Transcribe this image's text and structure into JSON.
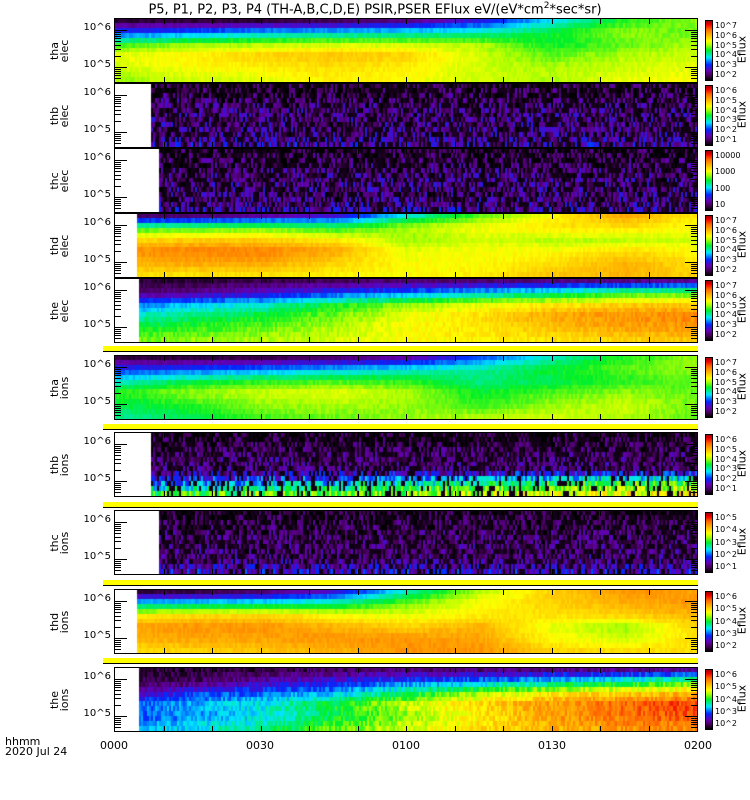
{
  "title": {
    "text": "P5, P1, P2, P3, P4 (TH-A,B,C,D,E) PSIR,PSER EFlux eV/(eV*cm",
    "sup": "2",
    "tail": "*sec*sr)"
  },
  "xaxis": {
    "format_label": "hhmm",
    "date_label": "2020 Jul 24"
  },
  "chart_data": {
    "type": "heatmap",
    "title": "P5, P1, P2, P3, P4 (TH-A,B,C,D,E) PSIR,PSER EFlux eV/(eV*cm^2*sec*sr)",
    "x_unit": "minutes since 2020-07-24 00:00",
    "xlim": [
      0,
      120
    ],
    "x_tick_labels": [
      "0000",
      "0030",
      "0100",
      "0130",
      "0200"
    ],
    "x_tick_values": [
      0,
      30,
      60,
      90,
      120
    ],
    "y_scale": "log",
    "ylim_log10": [
      4.6,
      6.3
    ],
    "y_tick_labels": [
      "10^6",
      "10^5"
    ],
    "y_tick_values_log10": [
      6,
      5
    ],
    "grid_time_min": [
      0,
      15,
      30,
      45,
      60,
      75,
      90,
      105,
      120
    ],
    "value_note": "grid values are normalized colour level 0-1 along each panel's colorbar, energy rows high to low",
    "panels": [
      {
        "probe": "tha",
        "species": "elec",
        "start_min": 0,
        "noise": 0.02,
        "colorbar_labels": [
          "10^7",
          "10^6",
          "10^5",
          "10^4",
          "10^3",
          "10^2"
        ],
        "colorbar_title": "Eflux",
        "grid": [
          [
            0.05,
            0.05,
            0.05,
            0.08,
            0.12,
            0.22,
            0.38,
            0.52,
            0.58
          ],
          [
            0.26,
            0.3,
            0.36,
            0.38,
            0.4,
            0.42,
            0.5,
            0.58,
            0.55
          ],
          [
            0.52,
            0.58,
            0.6,
            0.62,
            0.62,
            0.6,
            0.5,
            0.55,
            0.6
          ],
          [
            0.64,
            0.68,
            0.72,
            0.74,
            0.72,
            0.62,
            0.55,
            0.6,
            0.62
          ],
          [
            0.62,
            0.66,
            0.68,
            0.7,
            0.68,
            0.62,
            0.6,
            0.62,
            0.64
          ],
          [
            0.58,
            0.62,
            0.64,
            0.68,
            0.66,
            0.62,
            0.6,
            0.64,
            0.66
          ]
        ]
      },
      {
        "probe": "thb",
        "species": "elec",
        "start_min": 7.4,
        "noise": 0.12,
        "colorbar_labels": [
          "10^6",
          "10^5",
          "10^4",
          "10^3",
          "10^2",
          "10^1"
        ],
        "colorbar_title": "Eflux",
        "grid": [
          [
            0.03,
            0.03,
            0.03,
            0.03,
            0.03,
            0.03,
            0.03,
            0.03,
            0.03
          ],
          [
            0.06,
            0.06,
            0.06,
            0.06,
            0.06,
            0.06,
            0.06,
            0.06,
            0.06
          ],
          [
            0.1,
            0.1,
            0.1,
            0.1,
            0.1,
            0.1,
            0.1,
            0.1,
            0.1
          ],
          [
            0.11,
            0.11,
            0.11,
            0.11,
            0.11,
            0.11,
            0.11,
            0.11,
            0.11
          ],
          [
            0.1,
            0.1,
            0.1,
            0.1,
            0.1,
            0.1,
            0.1,
            0.1,
            0.1
          ],
          [
            0.16,
            0.16,
            0.16,
            0.16,
            0.16,
            0.16,
            0.16,
            0.16,
            0.16
          ]
        ]
      },
      {
        "probe": "thc",
        "species": "elec",
        "start_min": 9,
        "noise": 0.12,
        "colorbar_labels": [
          "10000",
          "1000",
          "100",
          "10"
        ],
        "colorbar_title": "",
        "grid": [
          [
            0.03,
            0.03,
            0.03,
            0.03,
            0.03,
            0.03,
            0.03,
            0.03,
            0.03
          ],
          [
            0.06,
            0.06,
            0.06,
            0.06,
            0.06,
            0.06,
            0.06,
            0.06,
            0.06
          ],
          [
            0.1,
            0.1,
            0.1,
            0.1,
            0.1,
            0.1,
            0.1,
            0.1,
            0.1
          ],
          [
            0.11,
            0.11,
            0.11,
            0.11,
            0.11,
            0.11,
            0.11,
            0.11,
            0.11
          ],
          [
            0.1,
            0.1,
            0.1,
            0.1,
            0.1,
            0.1,
            0.1,
            0.1,
            0.1
          ],
          [
            0.15,
            0.15,
            0.15,
            0.15,
            0.15,
            0.15,
            0.15,
            0.15,
            0.15
          ]
        ]
      },
      {
        "probe": "thd",
        "species": "elec",
        "start_min": 4.3,
        "noise": 0.02,
        "colorbar_labels": [
          "10^7",
          "10^6",
          "10^5",
          "10^4",
          "10^3",
          "10^2"
        ],
        "colorbar_title": "Eflux",
        "grid": [
          [
            0.08,
            0.1,
            0.14,
            0.2,
            0.4,
            0.55,
            0.66,
            0.78,
            0.68
          ],
          [
            0.5,
            0.52,
            0.55,
            0.5,
            0.6,
            0.66,
            0.7,
            0.7,
            0.66
          ],
          [
            0.7,
            0.72,
            0.72,
            0.68,
            0.58,
            0.62,
            0.6,
            0.6,
            0.62
          ],
          [
            0.8,
            0.82,
            0.82,
            0.78,
            0.64,
            0.66,
            0.66,
            0.7,
            0.66
          ],
          [
            0.76,
            0.78,
            0.78,
            0.72,
            0.66,
            0.66,
            0.7,
            0.76,
            0.7
          ],
          [
            0.7,
            0.7,
            0.7,
            0.68,
            0.66,
            0.68,
            0.74,
            0.76,
            0.72
          ]
        ]
      },
      {
        "probe": "the",
        "species": "elec",
        "start_min": 4.7,
        "noise": 0.03,
        "colorbar_labels": [
          "10^7",
          "10^6",
          "10^5",
          "10^4",
          "10^3",
          "10^2"
        ],
        "colorbar_title": "Eflux",
        "grid": [
          [
            0.05,
            0.05,
            0.06,
            0.08,
            0.1,
            0.1,
            0.12,
            0.12,
            0.14
          ],
          [
            0.1,
            0.12,
            0.18,
            0.25,
            0.3,
            0.36,
            0.42,
            0.5,
            0.52
          ],
          [
            0.28,
            0.36,
            0.4,
            0.5,
            0.58,
            0.64,
            0.68,
            0.72,
            0.74
          ],
          [
            0.4,
            0.45,
            0.5,
            0.56,
            0.64,
            0.7,
            0.78,
            0.8,
            0.82
          ],
          [
            0.48,
            0.52,
            0.55,
            0.6,
            0.66,
            0.7,
            0.74,
            0.78,
            0.8
          ],
          [
            0.55,
            0.58,
            0.6,
            0.62,
            0.66,
            0.68,
            0.7,
            0.72,
            0.74
          ]
        ]
      },
      {
        "probe": "tha",
        "species": "ions",
        "start_min": 0,
        "noise": 0.02,
        "colorbar_labels": [
          "10^7",
          "10^6",
          "10^5",
          "10^4",
          "10^3",
          "10^2"
        ],
        "colorbar_title": "Eflux",
        "grid": [
          [
            0.05,
            0.05,
            0.06,
            0.1,
            0.15,
            0.28,
            0.42,
            0.52,
            0.58
          ],
          [
            0.26,
            0.28,
            0.32,
            0.36,
            0.4,
            0.44,
            0.5,
            0.55,
            0.58
          ],
          [
            0.4,
            0.48,
            0.52,
            0.54,
            0.52,
            0.45,
            0.48,
            0.52,
            0.55
          ],
          [
            0.52,
            0.58,
            0.62,
            0.64,
            0.6,
            0.5,
            0.54,
            0.58,
            0.55
          ],
          [
            0.48,
            0.52,
            0.58,
            0.6,
            0.58,
            0.52,
            0.58,
            0.62,
            0.56
          ],
          [
            0.44,
            0.48,
            0.54,
            0.56,
            0.58,
            0.6,
            0.62,
            0.6,
            0.55
          ]
        ]
      },
      {
        "probe": "thb",
        "species": "ions",
        "start_min": 7.4,
        "noise": 0.1,
        "colorbar_labels": [
          "10^6",
          "10^5",
          "10^4",
          "10^3",
          "10^2",
          "10^1"
        ],
        "colorbar_title": "Eflux",
        "grid": [
          [
            0.03,
            0.03,
            0.03,
            0.03,
            0.03,
            0.03,
            0.03,
            0.03,
            0.03
          ],
          [
            0.06,
            0.06,
            0.06,
            0.06,
            0.06,
            0.06,
            0.06,
            0.06,
            0.06
          ],
          [
            0.1,
            0.1,
            0.1,
            0.1,
            0.1,
            0.1,
            0.1,
            0.1,
            0.1
          ],
          [
            0.1,
            0.1,
            0.1,
            0.1,
            0.1,
            0.1,
            0.1,
            0.1,
            0.1
          ],
          [
            0.26,
            0.28,
            0.3,
            0.34,
            0.38,
            0.42,
            0.45,
            0.48,
            0.5
          ],
          [
            0.5,
            0.52,
            0.54,
            0.56,
            0.58,
            0.62,
            0.64,
            0.66,
            0.66
          ]
        ]
      },
      {
        "probe": "thc",
        "species": "ions",
        "start_min": 9,
        "noise": 0.1,
        "colorbar_labels": [
          "10^5",
          "10^4",
          "10^3",
          "10^2",
          "10^1"
        ],
        "colorbar_title": "Eflux",
        "grid": [
          [
            0.03,
            0.03,
            0.03,
            0.03,
            0.03,
            0.03,
            0.03,
            0.03,
            0.03
          ],
          [
            0.06,
            0.06,
            0.06,
            0.06,
            0.06,
            0.06,
            0.06,
            0.06,
            0.06
          ],
          [
            0.09,
            0.09,
            0.09,
            0.09,
            0.09,
            0.09,
            0.09,
            0.09,
            0.09
          ],
          [
            0.1,
            0.1,
            0.1,
            0.1,
            0.1,
            0.1,
            0.1,
            0.1,
            0.1
          ],
          [
            0.1,
            0.1,
            0.1,
            0.1,
            0.1,
            0.1,
            0.1,
            0.1,
            0.1
          ],
          [
            0.2,
            0.2,
            0.2,
            0.2,
            0.2,
            0.2,
            0.2,
            0.2,
            0.2
          ]
        ]
      },
      {
        "probe": "thd",
        "species": "ions",
        "start_min": 4.3,
        "noise": 0.02,
        "colorbar_labels": [
          "10^6",
          "10^5",
          "10^4",
          "10^3",
          "10^2"
        ],
        "colorbar_title": "Eflux",
        "grid": [
          [
            0.05,
            0.06,
            0.1,
            0.2,
            0.42,
            0.6,
            0.72,
            0.8,
            0.78
          ],
          [
            0.38,
            0.4,
            0.42,
            0.45,
            0.56,
            0.66,
            0.72,
            0.76,
            0.8
          ],
          [
            0.66,
            0.7,
            0.72,
            0.66,
            0.64,
            0.68,
            0.7,
            0.72,
            0.76
          ],
          [
            0.78,
            0.8,
            0.8,
            0.76,
            0.72,
            0.76,
            0.64,
            0.58,
            0.72
          ],
          [
            0.76,
            0.78,
            0.78,
            0.8,
            0.8,
            0.78,
            0.66,
            0.62,
            0.7
          ],
          [
            0.7,
            0.72,
            0.74,
            0.76,
            0.8,
            0.8,
            0.72,
            0.7,
            0.7
          ]
        ]
      },
      {
        "probe": "the",
        "species": "ions",
        "start_min": 4.7,
        "noise": 0.05,
        "colorbar_labels": [
          "10^6",
          "10^5",
          "10^4",
          "10^3",
          "10^2"
        ],
        "colorbar_title": "Eflux",
        "grid": [
          [
            0.05,
            0.05,
            0.06,
            0.08,
            0.1,
            0.1,
            0.12,
            0.12,
            0.14
          ],
          [
            0.06,
            0.08,
            0.15,
            0.22,
            0.28,
            0.32,
            0.38,
            0.44,
            0.52
          ],
          [
            0.12,
            0.26,
            0.3,
            0.36,
            0.48,
            0.6,
            0.68,
            0.72,
            0.76
          ],
          [
            0.3,
            0.34,
            0.4,
            0.5,
            0.62,
            0.72,
            0.8,
            0.86,
            0.9
          ],
          [
            0.28,
            0.32,
            0.38,
            0.48,
            0.58,
            0.68,
            0.78,
            0.84,
            0.88
          ],
          [
            0.34,
            0.38,
            0.45,
            0.55,
            0.62,
            0.7,
            0.76,
            0.8,
            0.82
          ]
        ]
      }
    ]
  },
  "colors": {
    "indicator_bar": "#ffff00",
    "axis": "#000000"
  }
}
